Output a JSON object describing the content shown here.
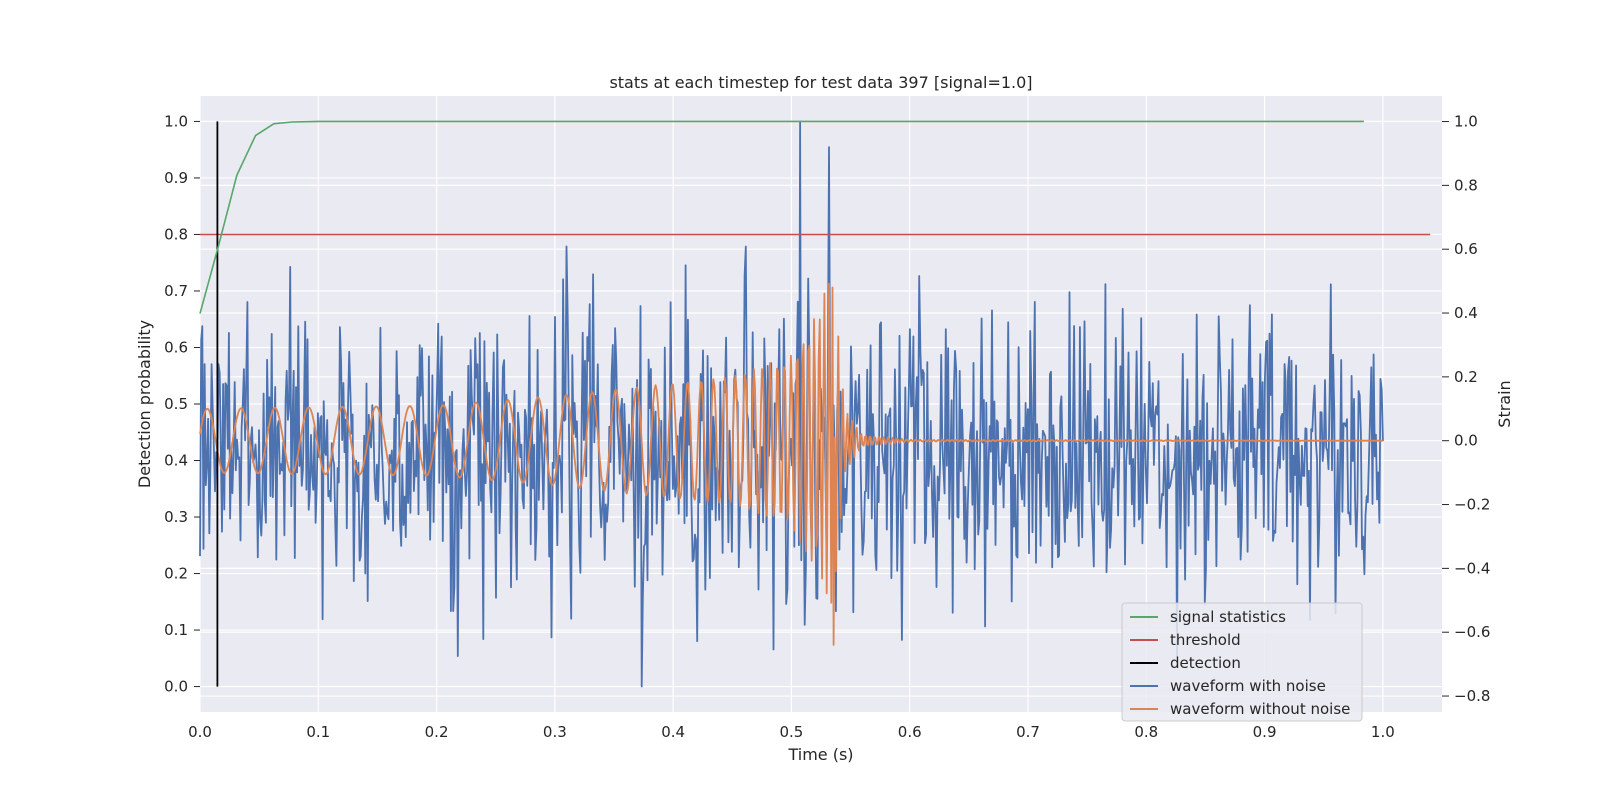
{
  "chart_data": {
    "type": "line",
    "title": "stats at each timestep for test data 397 [signal=1.0]",
    "xlabel": "Time (s)",
    "ylabel_left": "Detection probability",
    "ylabel_right": "Strain",
    "xlim": [
      0.0,
      1.05
    ],
    "ylim_left": [
      -0.045,
      1.045
    ],
    "ylim_right": [
      -0.85,
      1.08
    ],
    "x_ticks": [
      "0.0",
      "0.1",
      "0.2",
      "0.3",
      "0.4",
      "0.5",
      "0.6",
      "0.7",
      "0.8",
      "0.9",
      "1.0"
    ],
    "y_ticks_left": [
      "0.0",
      "0.1",
      "0.2",
      "0.3",
      "0.4",
      "0.5",
      "0.6",
      "0.7",
      "0.8",
      "0.9",
      "1.0"
    ],
    "y_ticks_right": [
      "−0.8",
      "−0.6",
      "−0.4",
      "−0.2",
      "0.0",
      "0.2",
      "0.4",
      "0.6",
      "0.8",
      "1.0"
    ],
    "grid": true,
    "legend_position": "bottom-right",
    "colors": {
      "signal_statistics": "#55a868",
      "threshold": "#c44e52",
      "detection": "#000000",
      "waveform_with_noise": "#4c72b0",
      "waveform_without_noise": "#dd8452",
      "background": "#eaeaf2",
      "grid": "#ffffff"
    },
    "series": [
      {
        "name": "signal statistics",
        "axis": "left",
        "x": [
          0.0,
          0.0156,
          0.0312,
          0.0469,
          0.0625,
          0.0781,
          0.1,
          0.2,
          0.3,
          0.4,
          0.5,
          0.6,
          0.7,
          0.8,
          0.9,
          0.984
        ],
        "y": [
          0.66,
          0.78,
          0.905,
          0.975,
          0.996,
          0.999,
          1.0,
          1.0,
          1.0,
          1.0,
          1.0,
          1.0,
          1.0,
          1.0,
          1.0,
          1.0
        ]
      },
      {
        "name": "threshold",
        "axis": "left",
        "x": [
          0.0,
          1.04
        ],
        "y": [
          0.8,
          0.8
        ]
      },
      {
        "name": "detection",
        "axis": "left",
        "x": [
          0.0147,
          0.0147
        ],
        "y": [
          0.0,
          1.0
        ]
      },
      {
        "name": "waveform with noise",
        "axis": "right",
        "n_points": 1024,
        "x_range": [
          0.0,
          1.0
        ],
        "mean": -0.03,
        "std": 0.22,
        "y_range": [
          -0.78,
          1.0
        ],
        "peak_max": {
          "x": 0.507,
          "y": 1.0
        },
        "second_peak": {
          "x": 0.532,
          "y": 0.92
        },
        "peak_min": {
          "x": 0.373,
          "y": -0.77
        }
      },
      {
        "name": "waveform without noise",
        "axis": "right",
        "n_points": 1024,
        "x_range": [
          0.0,
          1.0
        ],
        "envelope": {
          "x": [
            0.0,
            0.1,
            0.2,
            0.3,
            0.4,
            0.45,
            0.5,
            0.52,
            0.535,
            0.545,
            0.56,
            0.6,
            1.0
          ],
          "amp": [
            0.1,
            0.105,
            0.11,
            0.14,
            0.18,
            0.2,
            0.27,
            0.4,
            0.52,
            0.1,
            0.02,
            0.003,
            0.0
          ]
        },
        "frequency_hz": [
          35,
          260
        ],
        "merger_time": 0.535,
        "peak": {
          "x": 0.535,
          "y": 0.48
        },
        "trough": {
          "x": 0.535,
          "y": -0.64
        }
      }
    ]
  },
  "legend": [
    {
      "label": "signal statistics",
      "color": "#55a868"
    },
    {
      "label": "threshold",
      "color": "#c44e52"
    },
    {
      "label": "detection",
      "color": "#000000"
    },
    {
      "label": "waveform with noise",
      "color": "#4c72b0"
    },
    {
      "label": "waveform without noise",
      "color": "#dd8452"
    }
  ]
}
